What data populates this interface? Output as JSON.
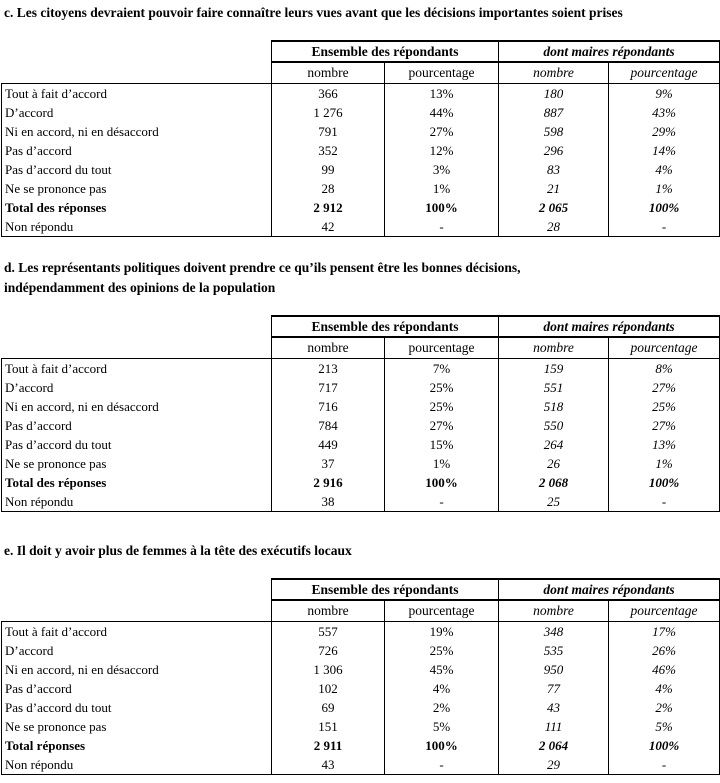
{
  "tables": [
    {
      "id": "c",
      "title_lines": [
        "c. Les citoyens devraient pouvoir faire connaître leurs vues avant que les décisions importantes soient prises"
      ],
      "group_headers": [
        "Ensemble des répondants",
        "dont maires répondants"
      ],
      "column_headers": [
        "nombre",
        "pourcentage",
        "nombre",
        "pourcentage"
      ],
      "rows": [
        {
          "label": "Tout à fait d’accord",
          "values": [
            "366",
            "13%",
            "180",
            "9%"
          ],
          "bold": false
        },
        {
          "label": "D’accord",
          "values": [
            "1 276",
            "44%",
            "887",
            "43%"
          ],
          "bold": false
        },
        {
          "label": "Ni en accord, ni en désaccord",
          "values": [
            "791",
            "27%",
            "598",
            "29%"
          ],
          "bold": false
        },
        {
          "label": "Pas d’accord",
          "values": [
            "352",
            "12%",
            "296",
            "14%"
          ],
          "bold": false
        },
        {
          "label": "Pas d’accord du tout",
          "values": [
            "99",
            "3%",
            "83",
            "4%"
          ],
          "bold": false
        },
        {
          "label": "Ne se prononce pas",
          "values": [
            "28",
            "1%",
            "21",
            "1%"
          ],
          "bold": false
        },
        {
          "label": "Total des réponses",
          "values": [
            "2 912",
            "100%",
            "2 065",
            "100%"
          ],
          "bold": true
        },
        {
          "label": "Non répondu",
          "values": [
            "42",
            "-",
            "28",
            "-"
          ],
          "bold": false
        }
      ]
    },
    {
      "id": "d",
      "title_lines": [
        "d. Les représentants politiques doivent prendre ce qu’ils pensent être les bonnes décisions,",
        "indépendamment des opinions de la population"
      ],
      "group_headers": [
        "Ensemble des répondants",
        "dont maires répondants"
      ],
      "column_headers": [
        "nombre",
        "pourcentage",
        "nombre",
        "pourcentage"
      ],
      "rows": [
        {
          "label": "Tout à fait d’accord",
          "values": [
            "213",
            "7%",
            "159",
            "8%"
          ],
          "bold": false
        },
        {
          "label": "D’accord",
          "values": [
            "717",
            "25%",
            "551",
            "27%"
          ],
          "bold": false
        },
        {
          "label": "Ni en accord, ni en désaccord",
          "values": [
            "716",
            "25%",
            "518",
            "25%"
          ],
          "bold": false
        },
        {
          "label": "Pas d’accord",
          "values": [
            "784",
            "27%",
            "550",
            "27%"
          ],
          "bold": false
        },
        {
          "label": "Pas d’accord du tout",
          "values": [
            "449",
            "15%",
            "264",
            "13%"
          ],
          "bold": false
        },
        {
          "label": "Ne se prononce pas",
          "values": [
            "37",
            "1%",
            "26",
            "1%"
          ],
          "bold": false
        },
        {
          "label": "Total des réponses",
          "values": [
            "2 916",
            "100%",
            "2 068",
            "100%"
          ],
          "bold": true
        },
        {
          "label": "Non répondu",
          "values": [
            "38",
            "-",
            "25",
            "-"
          ],
          "bold": false
        }
      ]
    },
    {
      "id": "e",
      "title_lines": [
        "e. Il doit y avoir plus de femmes à la tête des exécutifs locaux"
      ],
      "group_headers": [
        "Ensemble des répondants",
        "dont maires répondants"
      ],
      "column_headers": [
        "nombre",
        "pourcentage",
        "nombre",
        "pourcentage"
      ],
      "rows": [
        {
          "label": "Tout à fait d’accord",
          "values": [
            "557",
            "19%",
            "348",
            "17%"
          ],
          "bold": false
        },
        {
          "label": "D’accord",
          "values": [
            "726",
            "25%",
            "535",
            "26%"
          ],
          "bold": false
        },
        {
          "label": "Ni en accord, ni en désaccord",
          "values": [
            "1 306",
            "45%",
            "950",
            "46%"
          ],
          "bold": false
        },
        {
          "label": "Pas d’accord",
          "values": [
            "102",
            "4%",
            "77",
            "4%"
          ],
          "bold": false
        },
        {
          "label": "Pas d’accord du tout",
          "values": [
            "69",
            "2%",
            "43",
            "2%"
          ],
          "bold": false
        },
        {
          "label": "Ne se prononce pas",
          "values": [
            "151",
            "5%",
            "111",
            "5%"
          ],
          "bold": false
        },
        {
          "label": "Total réponses",
          "values": [
            "2 911",
            "100%",
            "2 064",
            "100%"
          ],
          "bold": true
        },
        {
          "label": "Non répondu",
          "values": [
            "43",
            "-",
            "29",
            "-"
          ],
          "bold": false
        }
      ]
    }
  ]
}
